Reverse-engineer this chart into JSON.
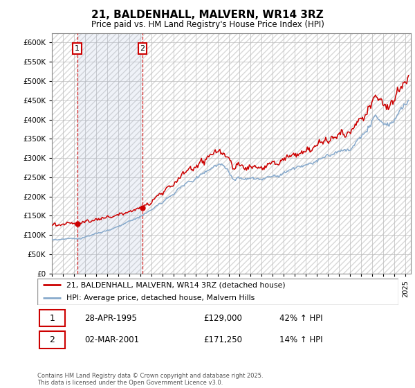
{
  "title": "21, BALDENHALL, MALVERN, WR14 3RZ",
  "subtitle": "Price paid vs. HM Land Registry's House Price Index (HPI)",
  "legend_line1": "21, BALDENHALL, MALVERN, WR14 3RZ (detached house)",
  "legend_line2": "HPI: Average price, detached house, Malvern Hills",
  "price_color": "#cc0000",
  "hpi_color": "#88aacc",
  "purchase1_x": 1995.33,
  "purchase1_price": 129000,
  "purchase1_date": "28-APR-1995",
  "purchase1_label": "42% ↑ HPI",
  "purchase2_x": 2001.17,
  "purchase2_price": 171250,
  "purchase2_date": "02-MAR-2001",
  "purchase2_label": "14% ↑ HPI",
  "footer": "Contains HM Land Registry data © Crown copyright and database right 2025.\nThis data is licensed under the Open Government Licence v3.0.",
  "ylim": [
    0,
    625000
  ],
  "yticks": [
    0,
    50000,
    100000,
    150000,
    200000,
    250000,
    300000,
    350000,
    400000,
    450000,
    500000,
    550000,
    600000
  ],
  "xlim_start": 1993,
  "xlim_end": 2025.5,
  "background_color": "#ffffff"
}
